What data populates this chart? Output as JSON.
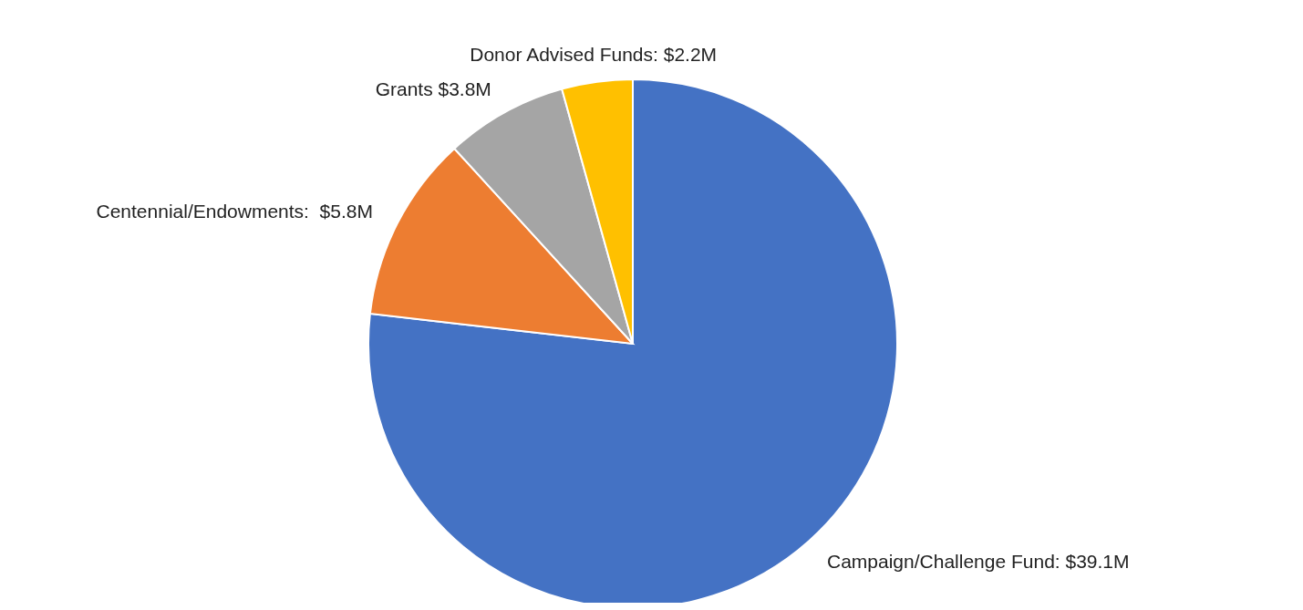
{
  "chart_data": {
    "type": "pie",
    "categories": [
      "Campaign/Challenge Fund: $39.1M",
      "Centennial/Endowments:  $5.8M",
      "Grants $3.8M",
      "Donor Advised Funds: $2.2M"
    ],
    "values": [
      39.1,
      5.8,
      3.8,
      2.2
    ],
    "colors": [
      "#4472c4",
      "#ed7d31",
      "#a5a5a5",
      "#ffc000"
    ]
  }
}
